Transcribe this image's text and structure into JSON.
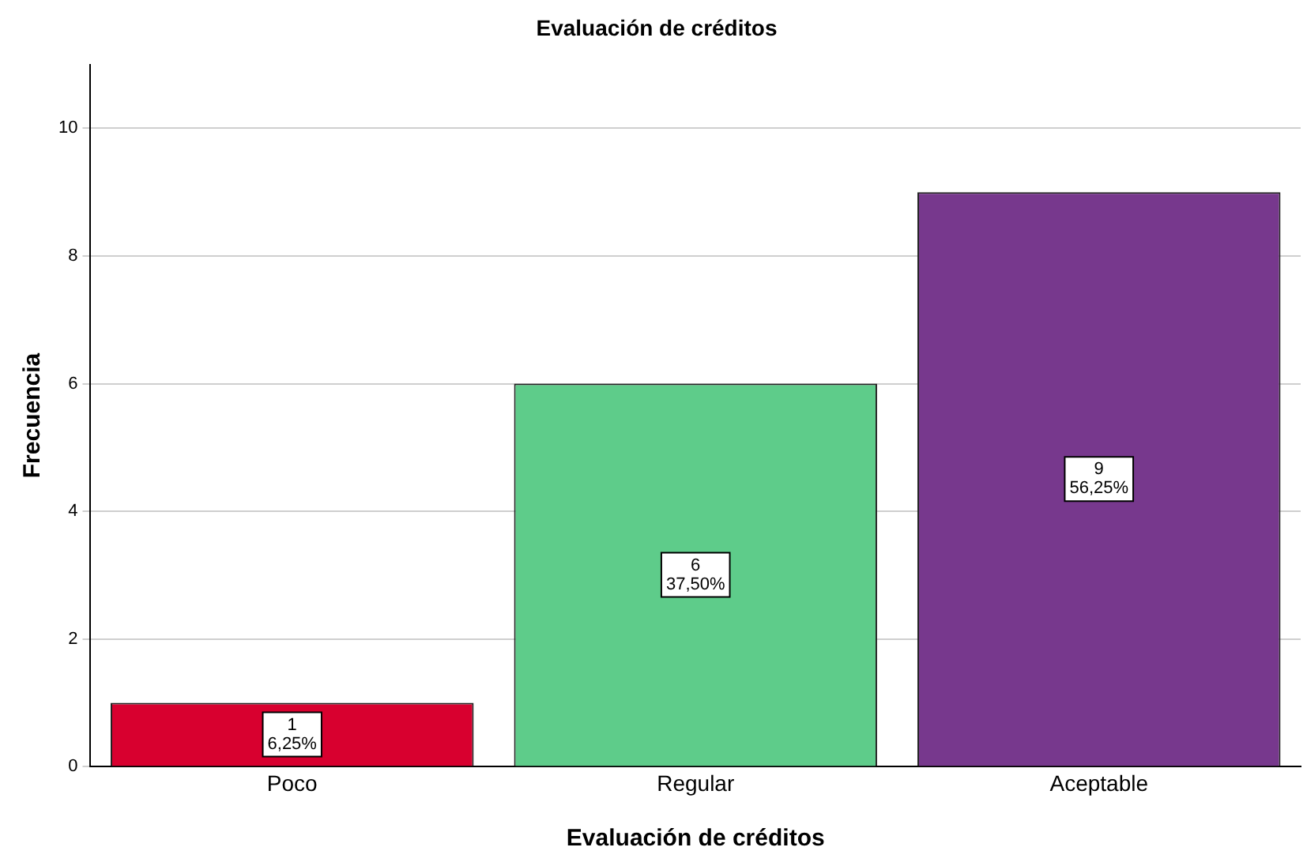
{
  "chart_data": {
    "type": "bar",
    "title": "Evaluación de créditos",
    "xlabel": "Evaluación de créditos",
    "ylabel": "Frecuencia",
    "categories": [
      "Poco",
      "Regular",
      "Aceptable"
    ],
    "values": [
      1,
      6,
      9
    ],
    "colors": [
      "#d8002f",
      "#5ecc8a",
      "#77388d"
    ],
    "value_labels": [
      "1\n6,25%",
      "6\n37,50%",
      "9\n56,25%"
    ],
    "ylim": [
      0,
      11
    ],
    "yticks": [
      0,
      2,
      4,
      6,
      8,
      10
    ],
    "grid": "y",
    "legend": false
  }
}
